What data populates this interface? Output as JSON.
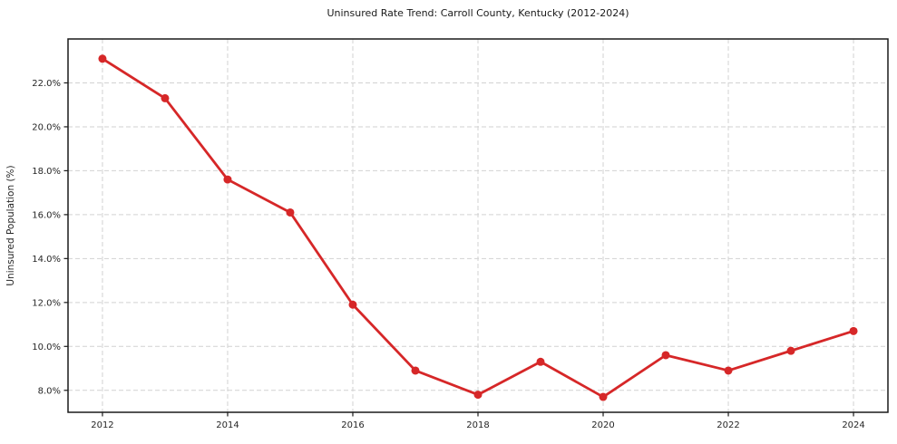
{
  "chart_data": {
    "type": "line",
    "title": "Uninsured Rate Trend: Carroll County, Kentucky (2012-2024)",
    "xlabel": "",
    "ylabel": "Uninsured Population (%)",
    "x": [
      2012,
      2013,
      2014,
      2015,
      2016,
      2017,
      2018,
      2019,
      2020,
      2021,
      2022,
      2023,
      2024
    ],
    "series": [
      {
        "name": "Uninsured Population (%)",
        "values": [
          23.1,
          21.3,
          17.6,
          16.1,
          11.9,
          8.9,
          7.8,
          9.3,
          7.7,
          9.6,
          8.9,
          9.8,
          10.7
        ]
      }
    ],
    "xticks": [
      2012,
      2014,
      2016,
      2018,
      2020,
      2022,
      2024
    ],
    "xtick_labels": [
      "2012",
      "2014",
      "2016",
      "2018",
      "2020",
      "2022",
      "2024"
    ],
    "yticks": [
      8,
      10,
      12,
      14,
      16,
      18,
      20,
      22
    ],
    "ytick_labels": [
      "8.0%",
      "10.0%",
      "12.0%",
      "14.0%",
      "16.0%",
      "18.0%",
      "20.0%",
      "22.0%"
    ],
    "ylim": [
      7.0,
      24.0
    ],
    "xlim": [
      2011.45,
      2024.55
    ],
    "grid": true,
    "grid_style": "dashed",
    "legend": "none",
    "colors": {
      "line": "#d62728",
      "marker": "#d62728",
      "grid": "#d2d2d2",
      "spine": "#1a1a1a",
      "tick_text": "#262626"
    }
  }
}
